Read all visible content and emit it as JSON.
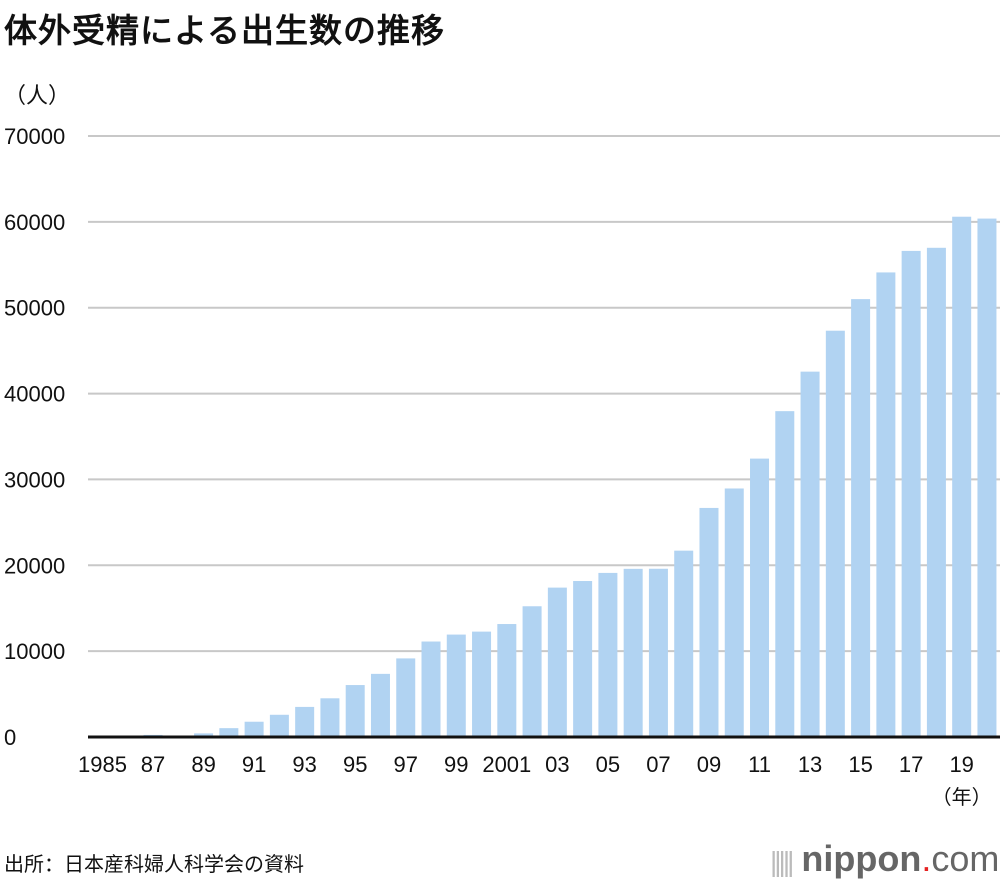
{
  "chart_data": {
    "type": "bar",
    "title": "体外受精による出生数の推移",
    "ylabel": "（人）",
    "xlabel": "（年）",
    "ylim": [
      0,
      70000
    ],
    "yticks": [
      0,
      10000,
      20000,
      30000,
      40000,
      50000,
      60000,
      70000
    ],
    "grid": true,
    "categories": [
      "1985",
      "1986",
      "1987",
      "1988",
      "1989",
      "1990",
      "1991",
      "1992",
      "1993",
      "1994",
      "1995",
      "1996",
      "1997",
      "1998",
      "1999",
      "2000",
      "2001",
      "2002",
      "2003",
      "2004",
      "2005",
      "2006",
      "2007",
      "2008",
      "2009",
      "2010",
      "2011",
      "2012",
      "2013",
      "2014",
      "2015",
      "2016",
      "2017",
      "2018",
      "2019",
      "2020"
    ],
    "tick_labels": [
      "1985",
      "",
      "87",
      "",
      "89",
      "",
      "91",
      "",
      "93",
      "",
      "95",
      "",
      "97",
      "",
      "99",
      "",
      "2001",
      "",
      "03",
      "",
      "05",
      "",
      "07",
      "",
      "09",
      "",
      "11",
      "",
      "13",
      "",
      "15",
      "",
      "17",
      "",
      "19",
      ""
    ],
    "values": [
      27,
      141,
      240,
      0,
      420,
      1031,
      1779,
      2588,
      3505,
      4507,
      6050,
      7354,
      9154,
      11119,
      11929,
      12274,
      13158,
      15228,
      17400,
      18168,
      19112,
      19587,
      19595,
      21704,
      26680,
      28945,
      32426,
      37953,
      42554,
      47322,
      51001,
      54110,
      56617,
      56979,
      60598,
      60381
    ],
    "bar_color": "#b1d3f2"
  },
  "source": "出所：日本産科婦人科学会の資料",
  "logo": {
    "name": "nippon",
    "dot": ".",
    "tld": "com"
  }
}
